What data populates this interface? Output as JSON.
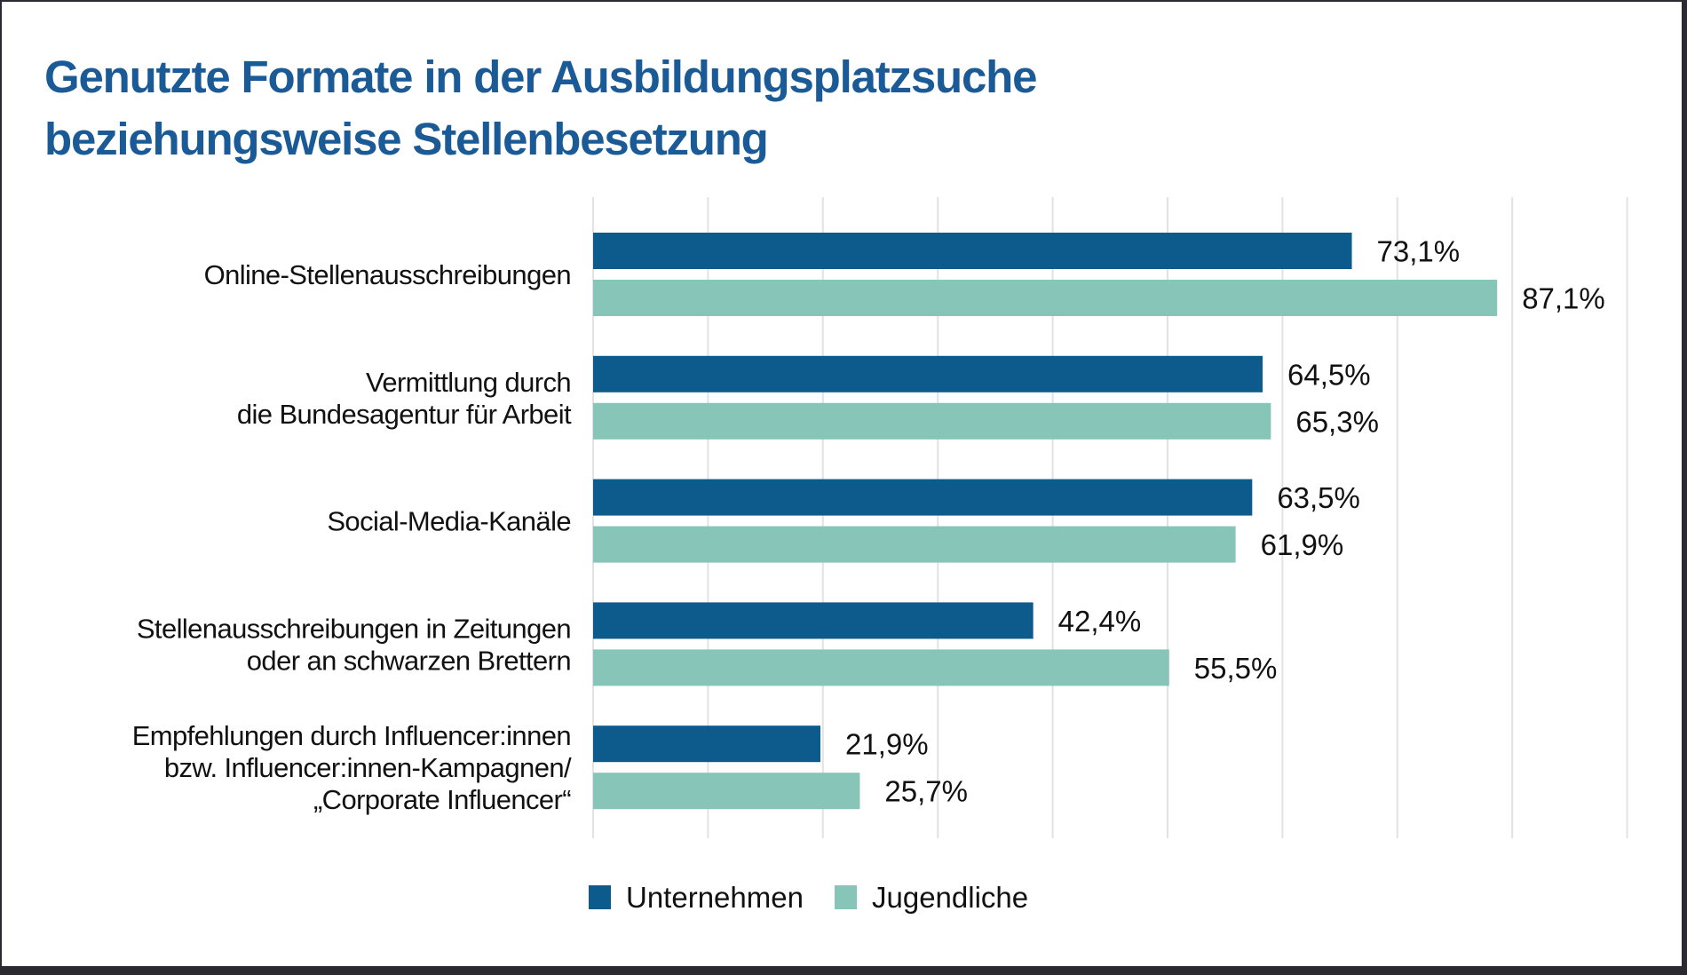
{
  "title": {
    "line1": "Genutzte Formate in der Ausbildungsplatzsuche",
    "line2": "beziehungsweise Stellenbesetzung"
  },
  "colors": {
    "title": "#1a5a96",
    "unternehmen": "#0d5a8c",
    "jugendliche": "#86c5b8",
    "grid": "#e2e2e2",
    "text": "#111111"
  },
  "chart_data": {
    "type": "bar",
    "orientation": "horizontal",
    "title": "Genutzte Formate in der Ausbildungsplatzsuche beziehungsweise Stellenbesetzung",
    "xlabel": "",
    "ylabel": "",
    "unit": "%",
    "xlim": [
      0,
      100
    ],
    "grid": true,
    "gridline_count": 10,
    "legend_position": "bottom",
    "categories": [
      [
        "Online-Stellenausschreibungen"
      ],
      [
        "Vermittlung durch",
        "die Bundesagentur für Arbeit"
      ],
      [
        "Social-Media-Kanäle"
      ],
      [
        "Stellenausschreibungen in Zeitungen",
        "oder an schwarzen Brettern"
      ],
      [
        "Empfehlungen durch Influencer:innen",
        "bzw. Influencer:innen-Kampagnen/",
        "„Corporate Influencer“"
      ]
    ],
    "series": [
      {
        "name": "Unternehmen",
        "color_key": "unternehmen",
        "values": [
          73.1,
          64.5,
          63.5,
          42.4,
          21.9
        ],
        "labels": [
          "73,1%",
          "64,5%",
          "63,5%",
          "42,4%",
          "21,9%"
        ]
      },
      {
        "name": "Jugendliche",
        "color_key": "jugendliche",
        "values": [
          87.1,
          65.3,
          61.9,
          55.5,
          25.7
        ],
        "labels": [
          "87,1%",
          "65,3%",
          "61,9%",
          "55,5%",
          "25,7%"
        ]
      }
    ]
  }
}
